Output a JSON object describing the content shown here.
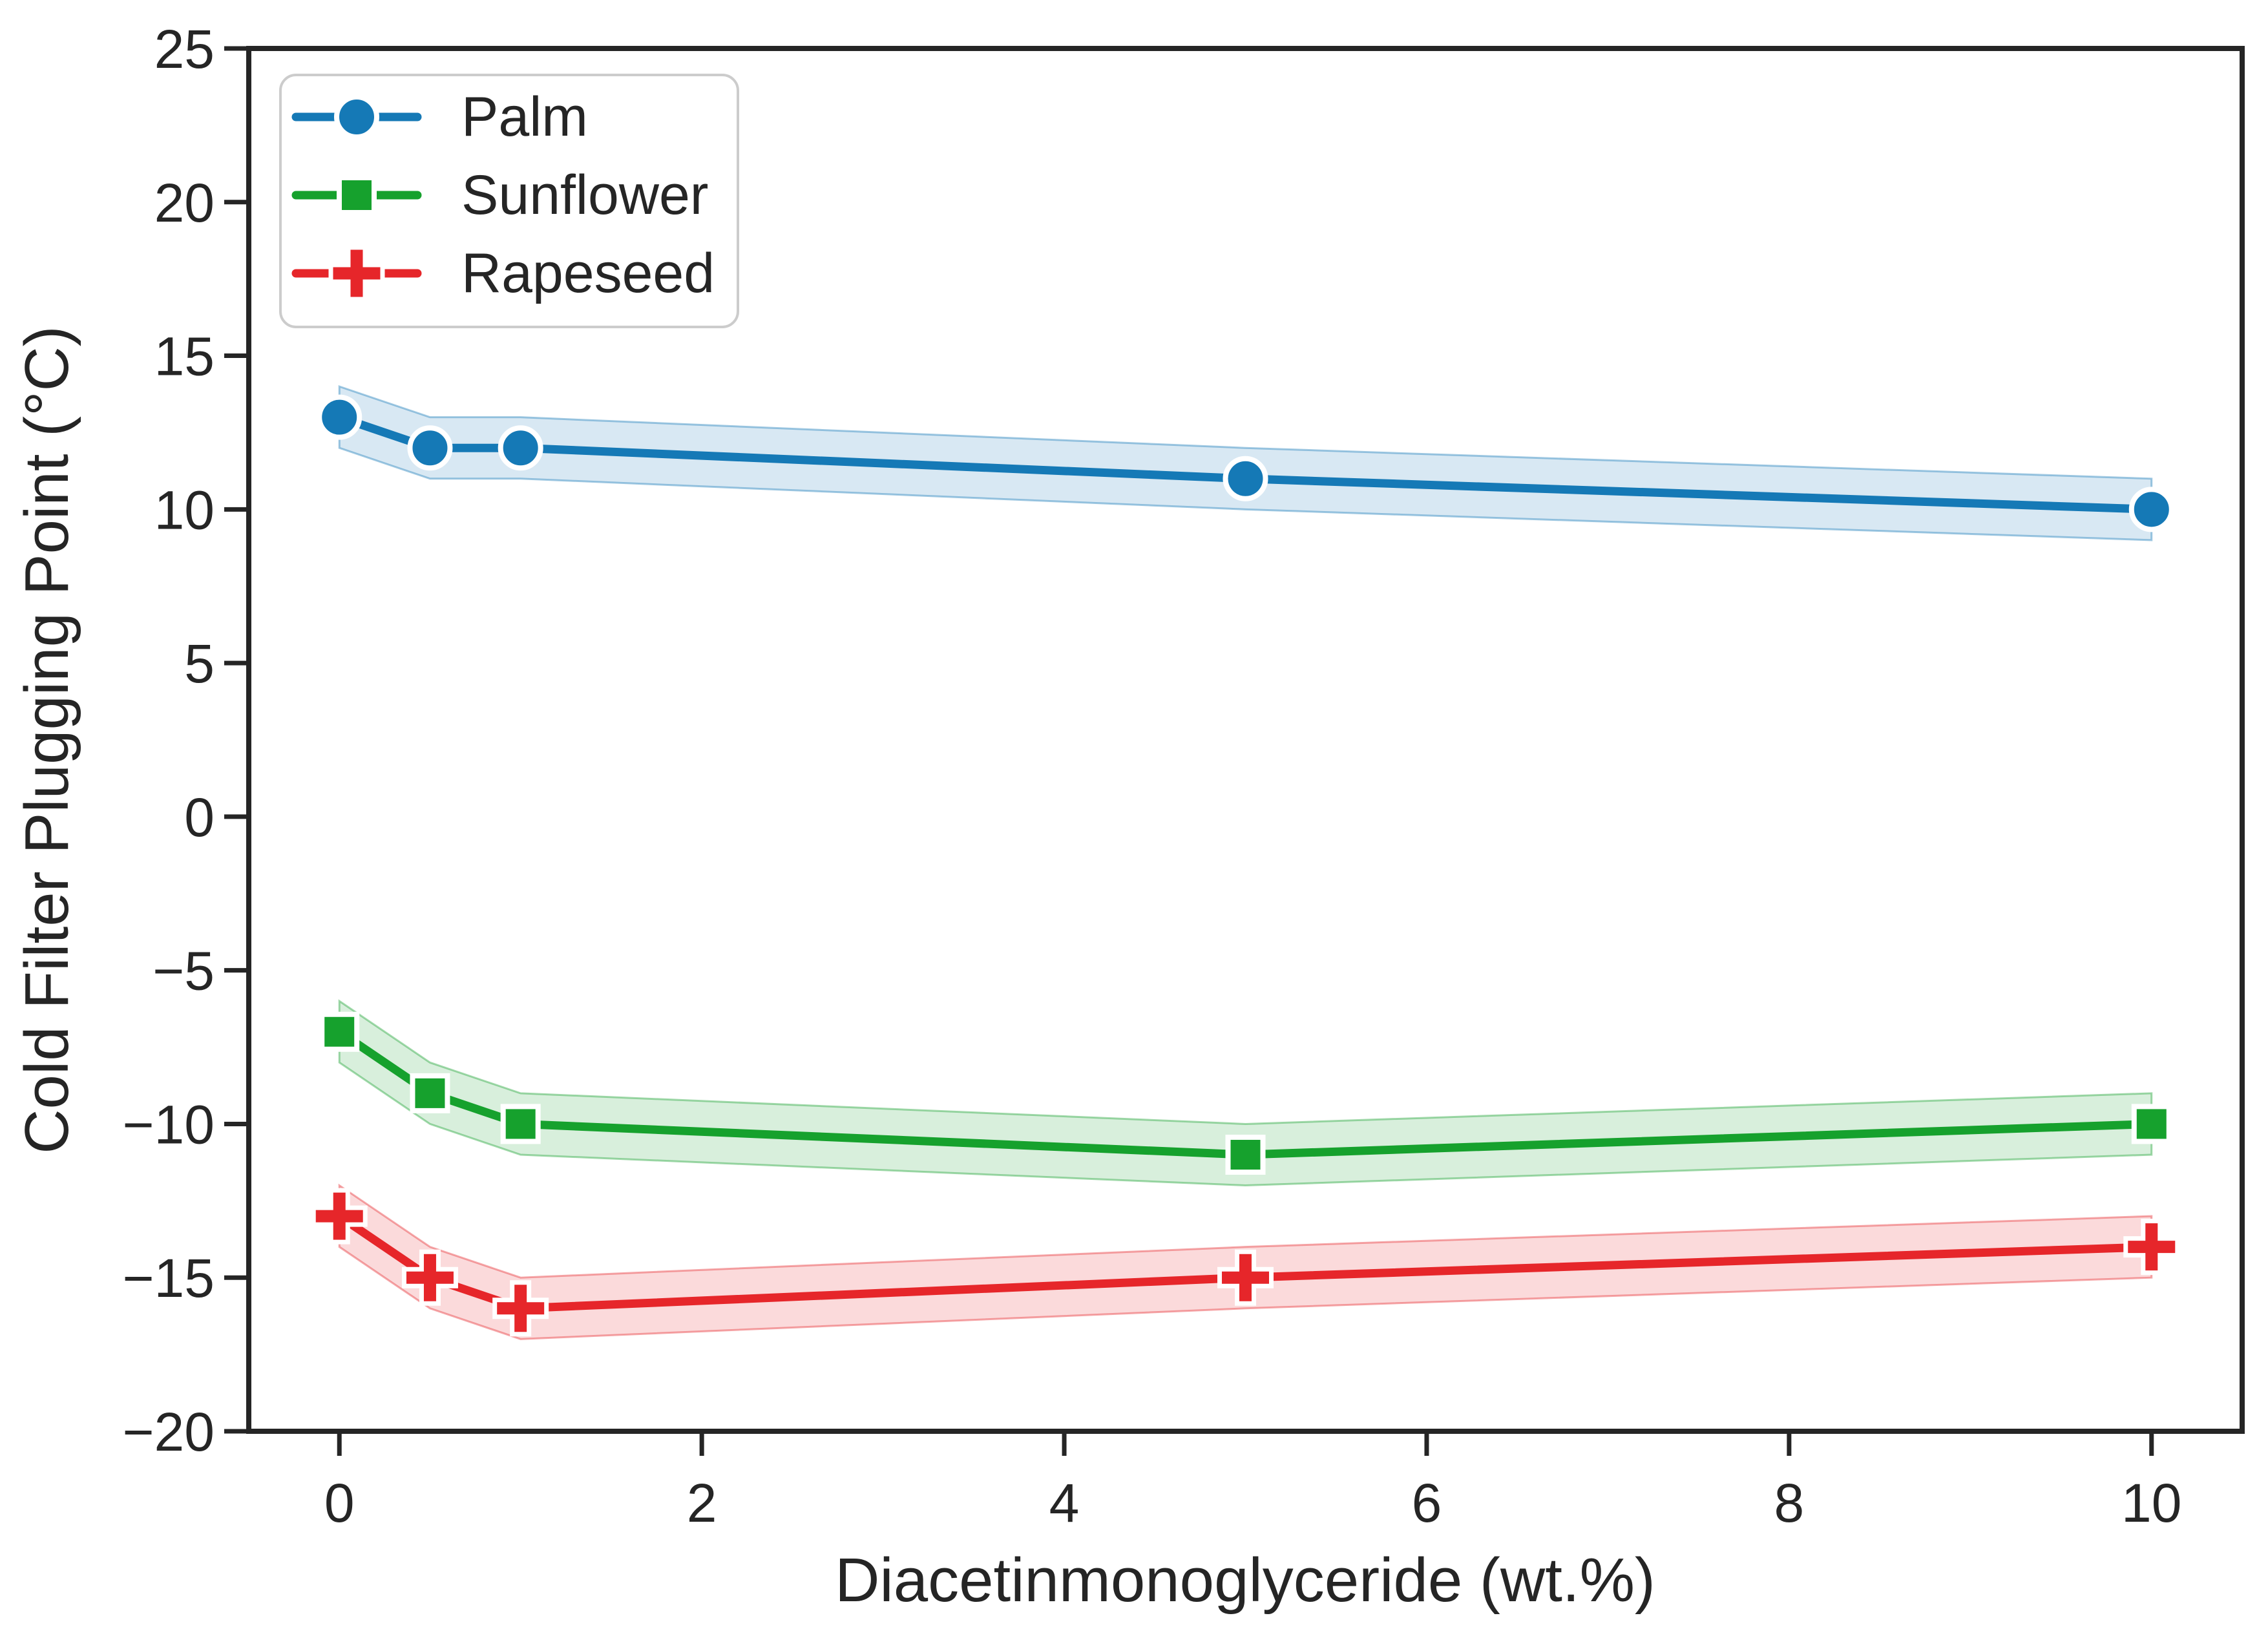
{
  "figure": {
    "background": "#ffffff",
    "axis_color": "#252525",
    "text_color": "#252525"
  },
  "chart_data": {
    "type": "line",
    "title": "",
    "xlabel": "Diacetinmonoglyceride (wt.%)",
    "ylabel": "Cold Filter Plugging Point (°C)",
    "x": [
      0,
      0.5,
      1,
      5,
      10
    ],
    "series": [
      {
        "name": "Palm",
        "marker": "circle",
        "color": "#1579b6",
        "values": [
          13,
          12,
          12,
          11,
          10
        ],
        "band_halfwidth": 1
      },
      {
        "name": "Sunflower",
        "marker": "square",
        "color": "#16a12d",
        "values": [
          -7,
          -9,
          -10,
          -11,
          -10
        ],
        "band_halfwidth": 1
      },
      {
        "name": "Rapeseed",
        "marker": "plus",
        "color": "#e6262a",
        "values": [
          -13,
          -15,
          -16,
          -15,
          -14
        ],
        "band_halfwidth": 1
      }
    ],
    "xlim": [
      -0.5,
      10.5
    ],
    "ylim": [
      -20,
      25
    ],
    "xticks": [
      0,
      2,
      4,
      6,
      8,
      10
    ],
    "yticks": [
      25,
      20,
      15,
      10,
      5,
      0,
      -5,
      -10,
      -15,
      -20
    ],
    "grid": false,
    "line_style": "solid",
    "marker_edge_color": "#ffffff",
    "band_opacity": 0.17,
    "legend_position": "upper left",
    "legend_items": [
      "Palm",
      "Sunflower",
      "Rapeseed"
    ]
  }
}
